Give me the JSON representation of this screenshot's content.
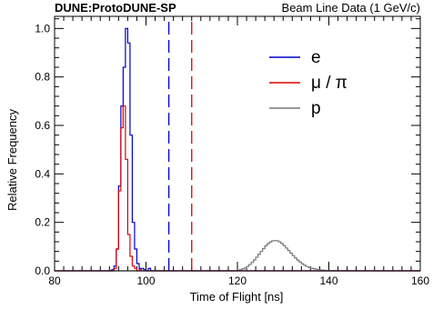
{
  "chart_data": {
    "type": "histogram",
    "header_left": "DUNE:ProtoDUNE-SP",
    "header_right": "Beam Line Data (1 GeV/c)",
    "xlabel": "Time of Flight [ns]",
    "ylabel": "Relative Frequency",
    "xlim": [
      80,
      160
    ],
    "ylim": [
      0,
      1.05
    ],
    "x_ticks": [
      80,
      100,
      120,
      140,
      160
    ],
    "y_ticks": [
      0.0,
      0.2,
      0.4,
      0.6,
      0.8,
      1.0
    ],
    "x_tick_labels": [
      "80",
      "100",
      "120",
      "140",
      "160"
    ],
    "y_tick_labels": [
      "0.0",
      "0.2",
      "0.4",
      "0.6",
      "0.8",
      "1.0"
    ],
    "legend_position": "top-right",
    "bin_width": 0.5,
    "series": [
      {
        "name": "e",
        "color": "#0000cc",
        "bin_start": 92.5,
        "values": [
          0.005,
          0.02,
          0.09,
          0.35,
          0.68,
          0.84,
          1.0,
          0.94,
          0.56,
          0.2,
          0.09,
          0.03,
          0.01,
          0.01,
          0.005,
          0.0,
          0.01,
          0.0
        ]
      },
      {
        "name": "μ / π",
        "color": "#dd0000",
        "bin_start": 93.0,
        "values": [
          0.01,
          0.09,
          0.33,
          0.59,
          0.68,
          0.46,
          0.15,
          0.06,
          0.02,
          0.01,
          0.0,
          0.005,
          0.0,
          0.0
        ]
      },
      {
        "name": "p",
        "color": "#777777",
        "bin_start": 120.0,
        "values": [
          0.003,
          0.005,
          0.008,
          0.012,
          0.018,
          0.026,
          0.035,
          0.045,
          0.056,
          0.068,
          0.08,
          0.092,
          0.103,
          0.112,
          0.119,
          0.124,
          0.125,
          0.124,
          0.12,
          0.113,
          0.104,
          0.094,
          0.084,
          0.073,
          0.063,
          0.053,
          0.044,
          0.036,
          0.029,
          0.023,
          0.018,
          0.014,
          0.011,
          0.009,
          0.007,
          0.005,
          0.004,
          0.003,
          0.002,
          0.0015,
          0.001,
          0.001
        ]
      }
    ],
    "reference_lines": [
      {
        "x": 105,
        "color": "#0000cc",
        "style": "dashed"
      },
      {
        "x": 110,
        "color": "#dd0000",
        "style": "dashed"
      }
    ]
  }
}
